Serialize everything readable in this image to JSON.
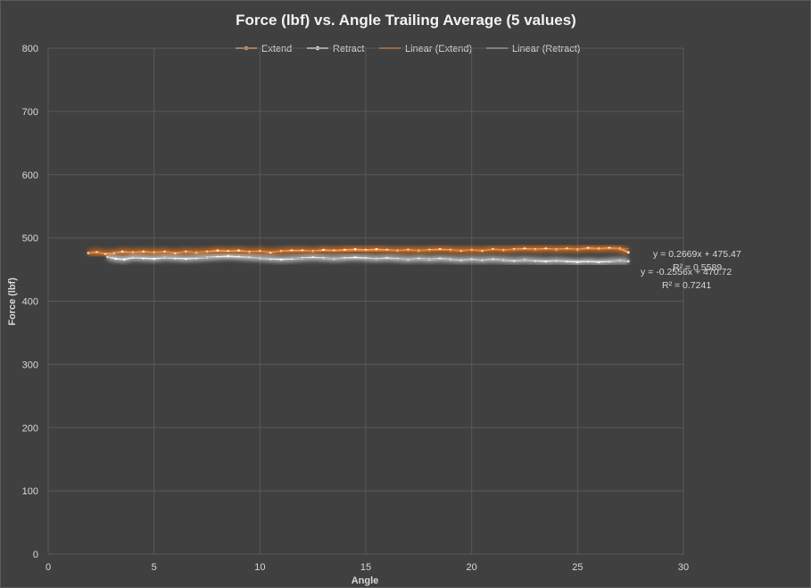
{
  "chart_data": {
    "type": "line",
    "title": "Force (lbf) vs. Angle Trailing Average (5 values)",
    "xlabel": "Angle",
    "ylabel": "Force (lbf)",
    "xlim": [
      0,
      30
    ],
    "ylim": [
      0,
      800
    ],
    "x_ticks": [
      "0",
      "5",
      "10",
      "15",
      "20",
      "25",
      "30"
    ],
    "y_ticks": [
      "0",
      "100",
      "200",
      "300",
      "400",
      "500",
      "600",
      "700",
      "800"
    ],
    "grid": true,
    "legend_position": "top",
    "legend": [
      "Extend",
      "Retract",
      "Linear (Extend)",
      "Linear (Retract)"
    ],
    "series": [
      {
        "name": "Extend",
        "color": "#f4a460",
        "glow": "#f07a1c",
        "x": [
          1.9,
          2.3,
          2.7,
          3.1,
          3.5,
          4.0,
          4.5,
          5.0,
          5.5,
          6.0,
          6.5,
          7.0,
          7.5,
          8.0,
          8.5,
          9.0,
          9.5,
          10.0,
          10.5,
          11.0,
          11.5,
          12.0,
          12.5,
          13.0,
          13.5,
          14.0,
          14.5,
          15.0,
          15.5,
          16.0,
          16.5,
          17.0,
          17.5,
          18.0,
          18.5,
          19.0,
          19.5,
          20.0,
          20.5,
          21.0,
          21.5,
          22.0,
          22.5,
          23.0,
          23.5,
          24.0,
          24.5,
          25.0,
          25.5,
          26.0,
          26.5,
          27.0,
          27.4
        ],
        "y": [
          476,
          477,
          475,
          476,
          478,
          477,
          478,
          477,
          478,
          476,
          478,
          477,
          478,
          480,
          479,
          480,
          478,
          479,
          477,
          479,
          480,
          480,
          479,
          481,
          480,
          481,
          482,
          481,
          482,
          481,
          480,
          481,
          480,
          481,
          482,
          481,
          480,
          481,
          480,
          482,
          481,
          482,
          483,
          482,
          483,
          482,
          483,
          482,
          484,
          483,
          484,
          483,
          477
        ]
      },
      {
        "name": "Retract",
        "color": "#eeeeee",
        "glow": "#cfcfcf",
        "x": [
          2.8,
          3.2,
          3.6,
          4.0,
          4.5,
          5.0,
          5.5,
          6.0,
          6.5,
          7.0,
          7.5,
          8.0,
          8.5,
          9.0,
          9.5,
          10.0,
          10.5,
          11.0,
          11.5,
          12.0,
          12.5,
          13.0,
          13.5,
          14.0,
          14.5,
          15.0,
          15.5,
          16.0,
          16.5,
          17.0,
          17.5,
          18.0,
          18.5,
          19.0,
          19.5,
          20.0,
          20.5,
          21.0,
          21.5,
          22.0,
          22.5,
          23.0,
          23.5,
          24.0,
          24.5,
          25.0,
          25.5,
          26.0,
          26.5,
          27.0,
          27.4
        ],
        "y": [
          470,
          467,
          466,
          469,
          468,
          467,
          469,
          468,
          467,
          468,
          469,
          470,
          471,
          470,
          469,
          468,
          467,
          466,
          467,
          468,
          469,
          468,
          467,
          468,
          469,
          468,
          467,
          468,
          467,
          466,
          467,
          466,
          467,
          466,
          465,
          466,
          465,
          466,
          465,
          464,
          465,
          464,
          463,
          464,
          463,
          462,
          463,
          462,
          463,
          464,
          463
        ]
      }
    ],
    "trendlines": [
      {
        "name": "Linear (Extend)",
        "color": "#e07a2e",
        "slope": 0.2669,
        "intercept": 475.47,
        "x_range": [
          1.9,
          27.4
        ],
        "equation": "y = 0.2669x  + 475.47",
        "r2": "R² = 0.5589"
      },
      {
        "name": "Linear (Retract)",
        "color": "#a6a6a6",
        "slope": -0.2556,
        "intercept": 470.72,
        "x_range": [
          2.8,
          27.4
        ],
        "equation": "y = -0.2556x + 470.72",
        "r2": "R² = 0.7241"
      }
    ]
  }
}
